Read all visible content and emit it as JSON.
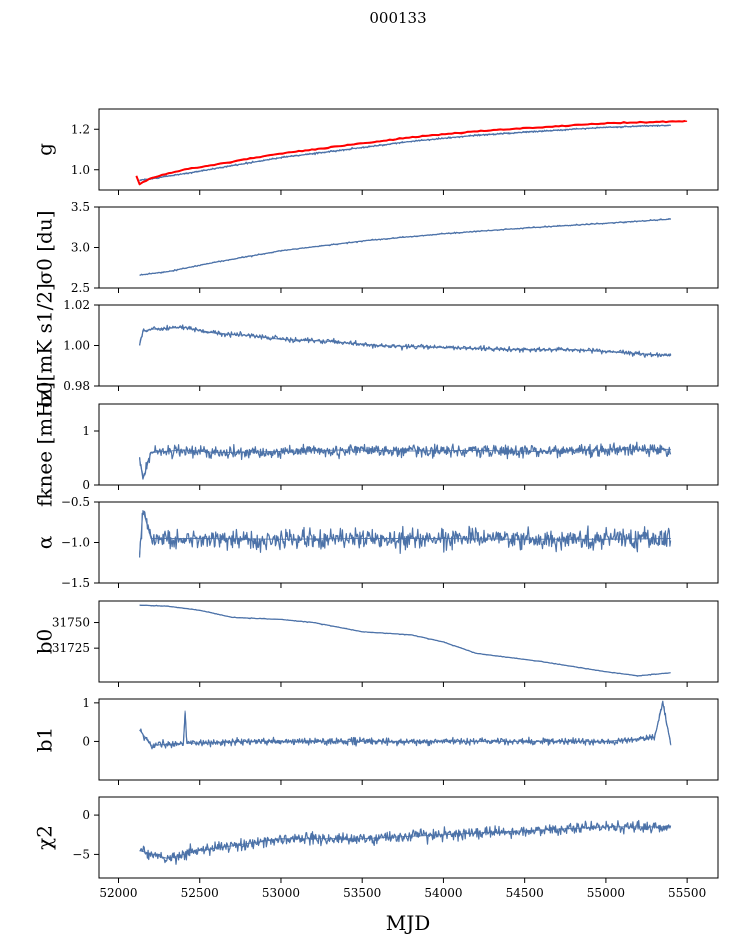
{
  "figure": {
    "title": "000133",
    "xlabel": "MJD",
    "x_ticks": [
      52000,
      52500,
      53000,
      53500,
      54000,
      54500,
      55000,
      55500
    ],
    "x_tick_labels": [
      "52000",
      "52500",
      "53000",
      "53500",
      "54000",
      "54500",
      "55000",
      "55500"
    ],
    "xlim": [
      51880,
      55690
    ],
    "colors": {
      "data": "#4c72a8",
      "model": "#ff0000"
    }
  },
  "chart_data": [
    {
      "type": "line",
      "id": "g",
      "ylabel": "g",
      "ylim": [
        0.9,
        1.3
      ],
      "y_ticks": [
        1.0,
        1.2
      ],
      "y_tick_labels": [
        "1.0",
        "1.2"
      ],
      "series": [
        {
          "name": "data",
          "color": "#4c72a8",
          "x": [
            52130,
            52200,
            52400,
            52700,
            53000,
            53400,
            53800,
            54200,
            54600,
            55000,
            55400
          ],
          "y": [
            0.95,
            0.955,
            0.98,
            1.02,
            1.06,
            1.1,
            1.14,
            1.17,
            1.19,
            1.21,
            1.22
          ]
        },
        {
          "name": "model",
          "color": "#ff0000",
          "x": [
            52110,
            52130,
            52200,
            52400,
            52700,
            53000,
            53400,
            53800,
            54200,
            54600,
            55000,
            55500
          ],
          "y": [
            0.97,
            0.93,
            0.96,
            1.0,
            1.04,
            1.08,
            1.12,
            1.16,
            1.19,
            1.21,
            1.23,
            1.24
          ]
        }
      ]
    },
    {
      "type": "line",
      "id": "sigma0_du",
      "ylabel": "σ0 [du]",
      "ylim": [
        2.5,
        3.5
      ],
      "y_ticks": [
        2.5,
        3.0,
        3.5
      ],
      "y_tick_labels": [
        "2.5",
        "3.0",
        "3.5"
      ],
      "series": [
        {
          "name": "data",
          "color": "#4c72a8",
          "x": [
            52130,
            52300,
            52600,
            53000,
            53500,
            54000,
            54500,
            55000,
            55400
          ],
          "y": [
            2.66,
            2.7,
            2.82,
            2.96,
            3.08,
            3.17,
            3.24,
            3.3,
            3.35
          ]
        }
      ]
    },
    {
      "type": "line",
      "id": "sigma0_mk",
      "ylabel": "σ0[mK s1/2]",
      "ylim": [
        0.98,
        1.02
      ],
      "y_ticks": [
        0.98,
        1.0,
        1.02
      ],
      "y_tick_labels": [
        "0.98",
        "1.00",
        "1.02"
      ],
      "series": [
        {
          "name": "data",
          "color": "#4c72a8",
          "x": [
            52130,
            52150,
            52200,
            52400,
            52600,
            52800,
            53000,
            53300,
            53600,
            54000,
            54400,
            54800,
            55200,
            55400
          ],
          "y": [
            1.0,
            1.007,
            1.008,
            1.009,
            1.006,
            1.005,
            1.003,
            1.002,
            1.0,
            0.999,
            0.998,
            0.998,
            0.996,
            0.995
          ]
        }
      ]
    },
    {
      "type": "line",
      "id": "fknee",
      "ylabel": "fknee [mHz]",
      "ylim": [
        0,
        1.5
      ],
      "y_ticks": [
        0,
        1
      ],
      "y_tick_labels": [
        "0",
        "1"
      ],
      "series": [
        {
          "name": "data",
          "color": "#4c72a8",
          "x": [
            52130,
            52150,
            52200,
            52400,
            52600,
            53000,
            53400,
            53800,
            54200,
            54600,
            55000,
            55400
          ],
          "y": [
            0.5,
            0.1,
            0.6,
            0.65,
            0.6,
            0.62,
            0.65,
            0.63,
            0.64,
            0.62,
            0.65,
            0.66
          ]
        }
      ]
    },
    {
      "type": "line",
      "id": "alpha",
      "ylabel": "α",
      "ylim": [
        -1.5,
        -0.5
      ],
      "y_ticks": [
        -1.5,
        -1.0,
        -0.5
      ],
      "y_tick_labels": [
        "−1.5",
        "−1.0",
        "−0.5"
      ],
      "series": [
        {
          "name": "data",
          "color": "#4c72a8",
          "x": [
            52130,
            52150,
            52200,
            52500,
            53000,
            53500,
            54000,
            54500,
            55000,
            55400
          ],
          "y": [
            -1.15,
            -0.6,
            -0.95,
            -0.95,
            -0.96,
            -0.95,
            -0.95,
            -0.96,
            -0.96,
            -0.95
          ]
        }
      ]
    },
    {
      "type": "line",
      "id": "b0",
      "ylabel": "b0",
      "ylim": [
        31692,
        31771
      ],
      "y_ticks": [
        31725,
        31750
      ],
      "y_tick_labels": [
        "31725",
        "31750"
      ],
      "series": [
        {
          "name": "data",
          "color": "#4c72a8",
          "x": [
            52130,
            52300,
            52500,
            52700,
            53000,
            53200,
            53500,
            53800,
            54000,
            54200,
            54600,
            55000,
            55200,
            55400
          ],
          "y": [
            31767,
            31766,
            31762,
            31755,
            31753,
            31750,
            31741,
            31738,
            31731,
            31720,
            31712,
            31702,
            31698,
            31701
          ]
        }
      ]
    },
    {
      "type": "line",
      "id": "b1",
      "ylabel": "b1",
      "ylim": [
        -1.0,
        1.1
      ],
      "y_ticks": [
        0,
        1
      ],
      "y_tick_labels": [
        "0",
        "1"
      ],
      "series": [
        {
          "name": "data",
          "color": "#4c72a8",
          "x": [
            52130,
            52200,
            52400,
            52410,
            52420,
            52800,
            53200,
            53800,
            54400,
            55000,
            55300,
            55350,
            55400
          ],
          "y": [
            0.3,
            -0.1,
            -0.05,
            0.8,
            -0.05,
            0.0,
            0.0,
            0.0,
            0.0,
            0.0,
            0.1,
            1.0,
            -0.1
          ]
        }
      ]
    },
    {
      "type": "line",
      "id": "chi2",
      "ylabel": "χ2",
      "ylim": [
        -8,
        2.3
      ],
      "y_ticks": [
        -5,
        0
      ],
      "y_tick_labels": [
        "−5",
        "0"
      ],
      "series": [
        {
          "name": "data",
          "color": "#4c72a8",
          "x": [
            52130,
            52300,
            52500,
            53000,
            53500,
            54000,
            54500,
            55000,
            55400
          ],
          "y": [
            -4.5,
            -5.5,
            -4.5,
            -3.0,
            -3.0,
            -2.5,
            -2.0,
            -1.5,
            -1.5
          ]
        }
      ]
    }
  ]
}
